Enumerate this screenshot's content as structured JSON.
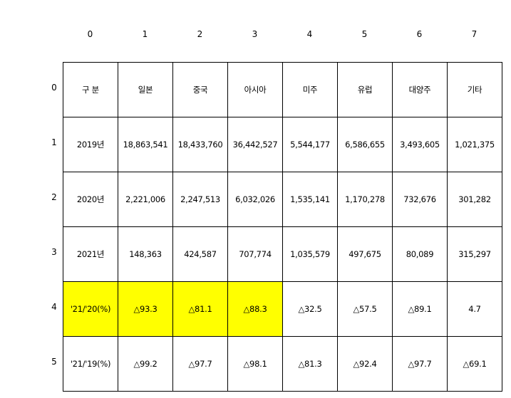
{
  "column_indices": [
    "0",
    "1",
    "2",
    "3",
    "4",
    "5",
    "6",
    "7"
  ],
  "row_indices": [
    "0",
    "1",
    "2",
    "3",
    "4",
    "5"
  ],
  "table": {
    "rows": [
      [
        "구 분",
        "일본",
        "중국",
        "아시아",
        "미주",
        "유럽",
        "대양주",
        "기타"
      ],
      [
        "2019년",
        "18,863,541",
        "18,433,760",
        "36,442,527",
        "5,544,177",
        "6,586,655",
        "3,493,605",
        "1,021,375"
      ],
      [
        "2020년",
        "2,221,006",
        "2,247,513",
        "6,032,026",
        "1,535,141",
        "1,170,278",
        "732,676",
        "301,282"
      ],
      [
        "2021년",
        "148,363",
        "424,587",
        "707,774",
        "1,035,579",
        "497,675",
        "80,089",
        "315,297"
      ],
      [
        "'21/'20(%)",
        "△93.3",
        "△81.1",
        "△88.3",
        "△32.5",
        "△57.5",
        "△89.1",
        "4.7"
      ],
      [
        "'21/'19(%)",
        "△99.2",
        "△97.7",
        "△98.1",
        "△81.3",
        "△92.4",
        "△97.7",
        "△69.1"
      ]
    ]
  },
  "colors": {
    "highlight": "#ffff00",
    "border": "#000000",
    "background": "#ffffff"
  }
}
